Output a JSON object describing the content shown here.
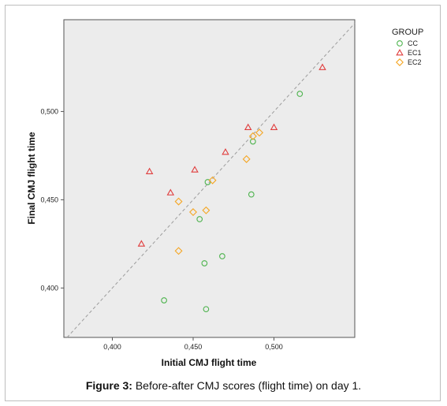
{
  "chart_data": {
    "type": "scatter",
    "xlabel": "Initial CMJ flight time",
    "ylabel": "Final CMJ flight time",
    "xlim": [
      0.37,
      0.55
    ],
    "ylim": [
      0.372,
      0.552
    ],
    "x_ticks": [
      {
        "value": 0.4,
        "label": "0,400"
      },
      {
        "value": 0.45,
        "label": "0,450"
      },
      {
        "value": 0.5,
        "label": "0,500"
      }
    ],
    "y_ticks": [
      {
        "value": 0.4,
        "label": "0,400"
      },
      {
        "value": 0.45,
        "label": "0,450"
      },
      {
        "value": 0.5,
        "label": "0,500"
      }
    ],
    "reference_line": "y = x (dashed)",
    "grid": false,
    "legend": {
      "title": "GROUP",
      "placement": "right",
      "entries": [
        {
          "name": "CC",
          "marker": "circle",
          "color": "#4db34d"
        },
        {
          "name": "EC1",
          "marker": "triangle",
          "color": "#e03c3c"
        },
        {
          "name": "EC2",
          "marker": "diamond",
          "color": "#f5a623"
        }
      ]
    },
    "series": [
      {
        "name": "CC",
        "points": [
          {
            "x": 0.516,
            "y": 0.51
          },
          {
            "x": 0.487,
            "y": 0.483
          },
          {
            "x": 0.459,
            "y": 0.46
          },
          {
            "x": 0.486,
            "y": 0.453
          },
          {
            "x": 0.454,
            "y": 0.439
          },
          {
            "x": 0.468,
            "y": 0.418
          },
          {
            "x": 0.457,
            "y": 0.414
          },
          {
            "x": 0.432,
            "y": 0.393
          },
          {
            "x": 0.458,
            "y": 0.388
          }
        ]
      },
      {
        "name": "EC1",
        "points": [
          {
            "x": 0.53,
            "y": 0.525
          },
          {
            "x": 0.484,
            "y": 0.491
          },
          {
            "x": 0.5,
            "y": 0.491
          },
          {
            "x": 0.47,
            "y": 0.477
          },
          {
            "x": 0.451,
            "y": 0.467
          },
          {
            "x": 0.423,
            "y": 0.466
          },
          {
            "x": 0.436,
            "y": 0.454
          },
          {
            "x": 0.418,
            "y": 0.425
          }
        ]
      },
      {
        "name": "EC2",
        "points": [
          {
            "x": 0.491,
            "y": 0.488
          },
          {
            "x": 0.487,
            "y": 0.486
          },
          {
            "x": 0.483,
            "y": 0.473
          },
          {
            "x": 0.462,
            "y": 0.461
          },
          {
            "x": 0.441,
            "y": 0.449
          },
          {
            "x": 0.458,
            "y": 0.444
          },
          {
            "x": 0.45,
            "y": 0.443
          },
          {
            "x": 0.441,
            "y": 0.421
          }
        ]
      }
    ]
  },
  "caption": {
    "label": "Figure 3:",
    "text": " Before-after CMJ scores (flight time) on day 1."
  }
}
